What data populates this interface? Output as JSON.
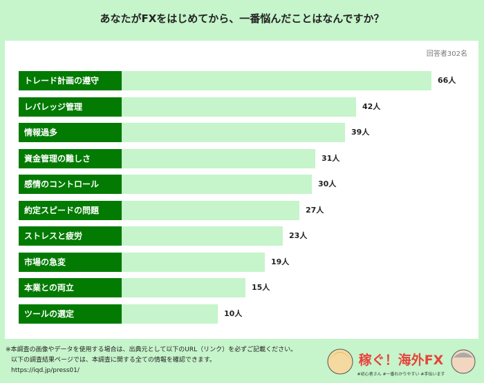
{
  "title": "あなたがFXをはじめてから、一番悩んだことはなんですか？",
  "respondents": "回答者302名",
  "chart_data": {
    "type": "bar",
    "orientation": "horizontal",
    "categories": [
      "トレード計画の遵守",
      "レバレッジ管理",
      "情報過多",
      "資金管理の難しさ",
      "感情のコントロール",
      "約定スピードの問題",
      "ストレスと疲労",
      "市場の急変",
      "本業との両立",
      "ツールの選定"
    ],
    "values": [
      66,
      42,
      39,
      31,
      30,
      27,
      23,
      19,
      15,
      10
    ],
    "value_labels": [
      "66人",
      "42人",
      "39人",
      "31人",
      "30人",
      "27人",
      "23人",
      "19人",
      "15人",
      "10人"
    ],
    "unit": "人",
    "label_color": "#037b03",
    "bar_color": "#c6f4cb"
  },
  "footer": {
    "line1": "※本調査の画像やデータを使用する場合は、出典元として以下のURL（リンク）を必ずご記載ください。",
    "line2": "以下の調査結果ページでは、本調査に関する全ての情報を確認できます。",
    "url": "https://iqd.jp/press01/"
  },
  "logo": {
    "text": "稼ぐ！海外FX",
    "tagline": "#初心者さん #一番わかりやすい #手伝います"
  }
}
